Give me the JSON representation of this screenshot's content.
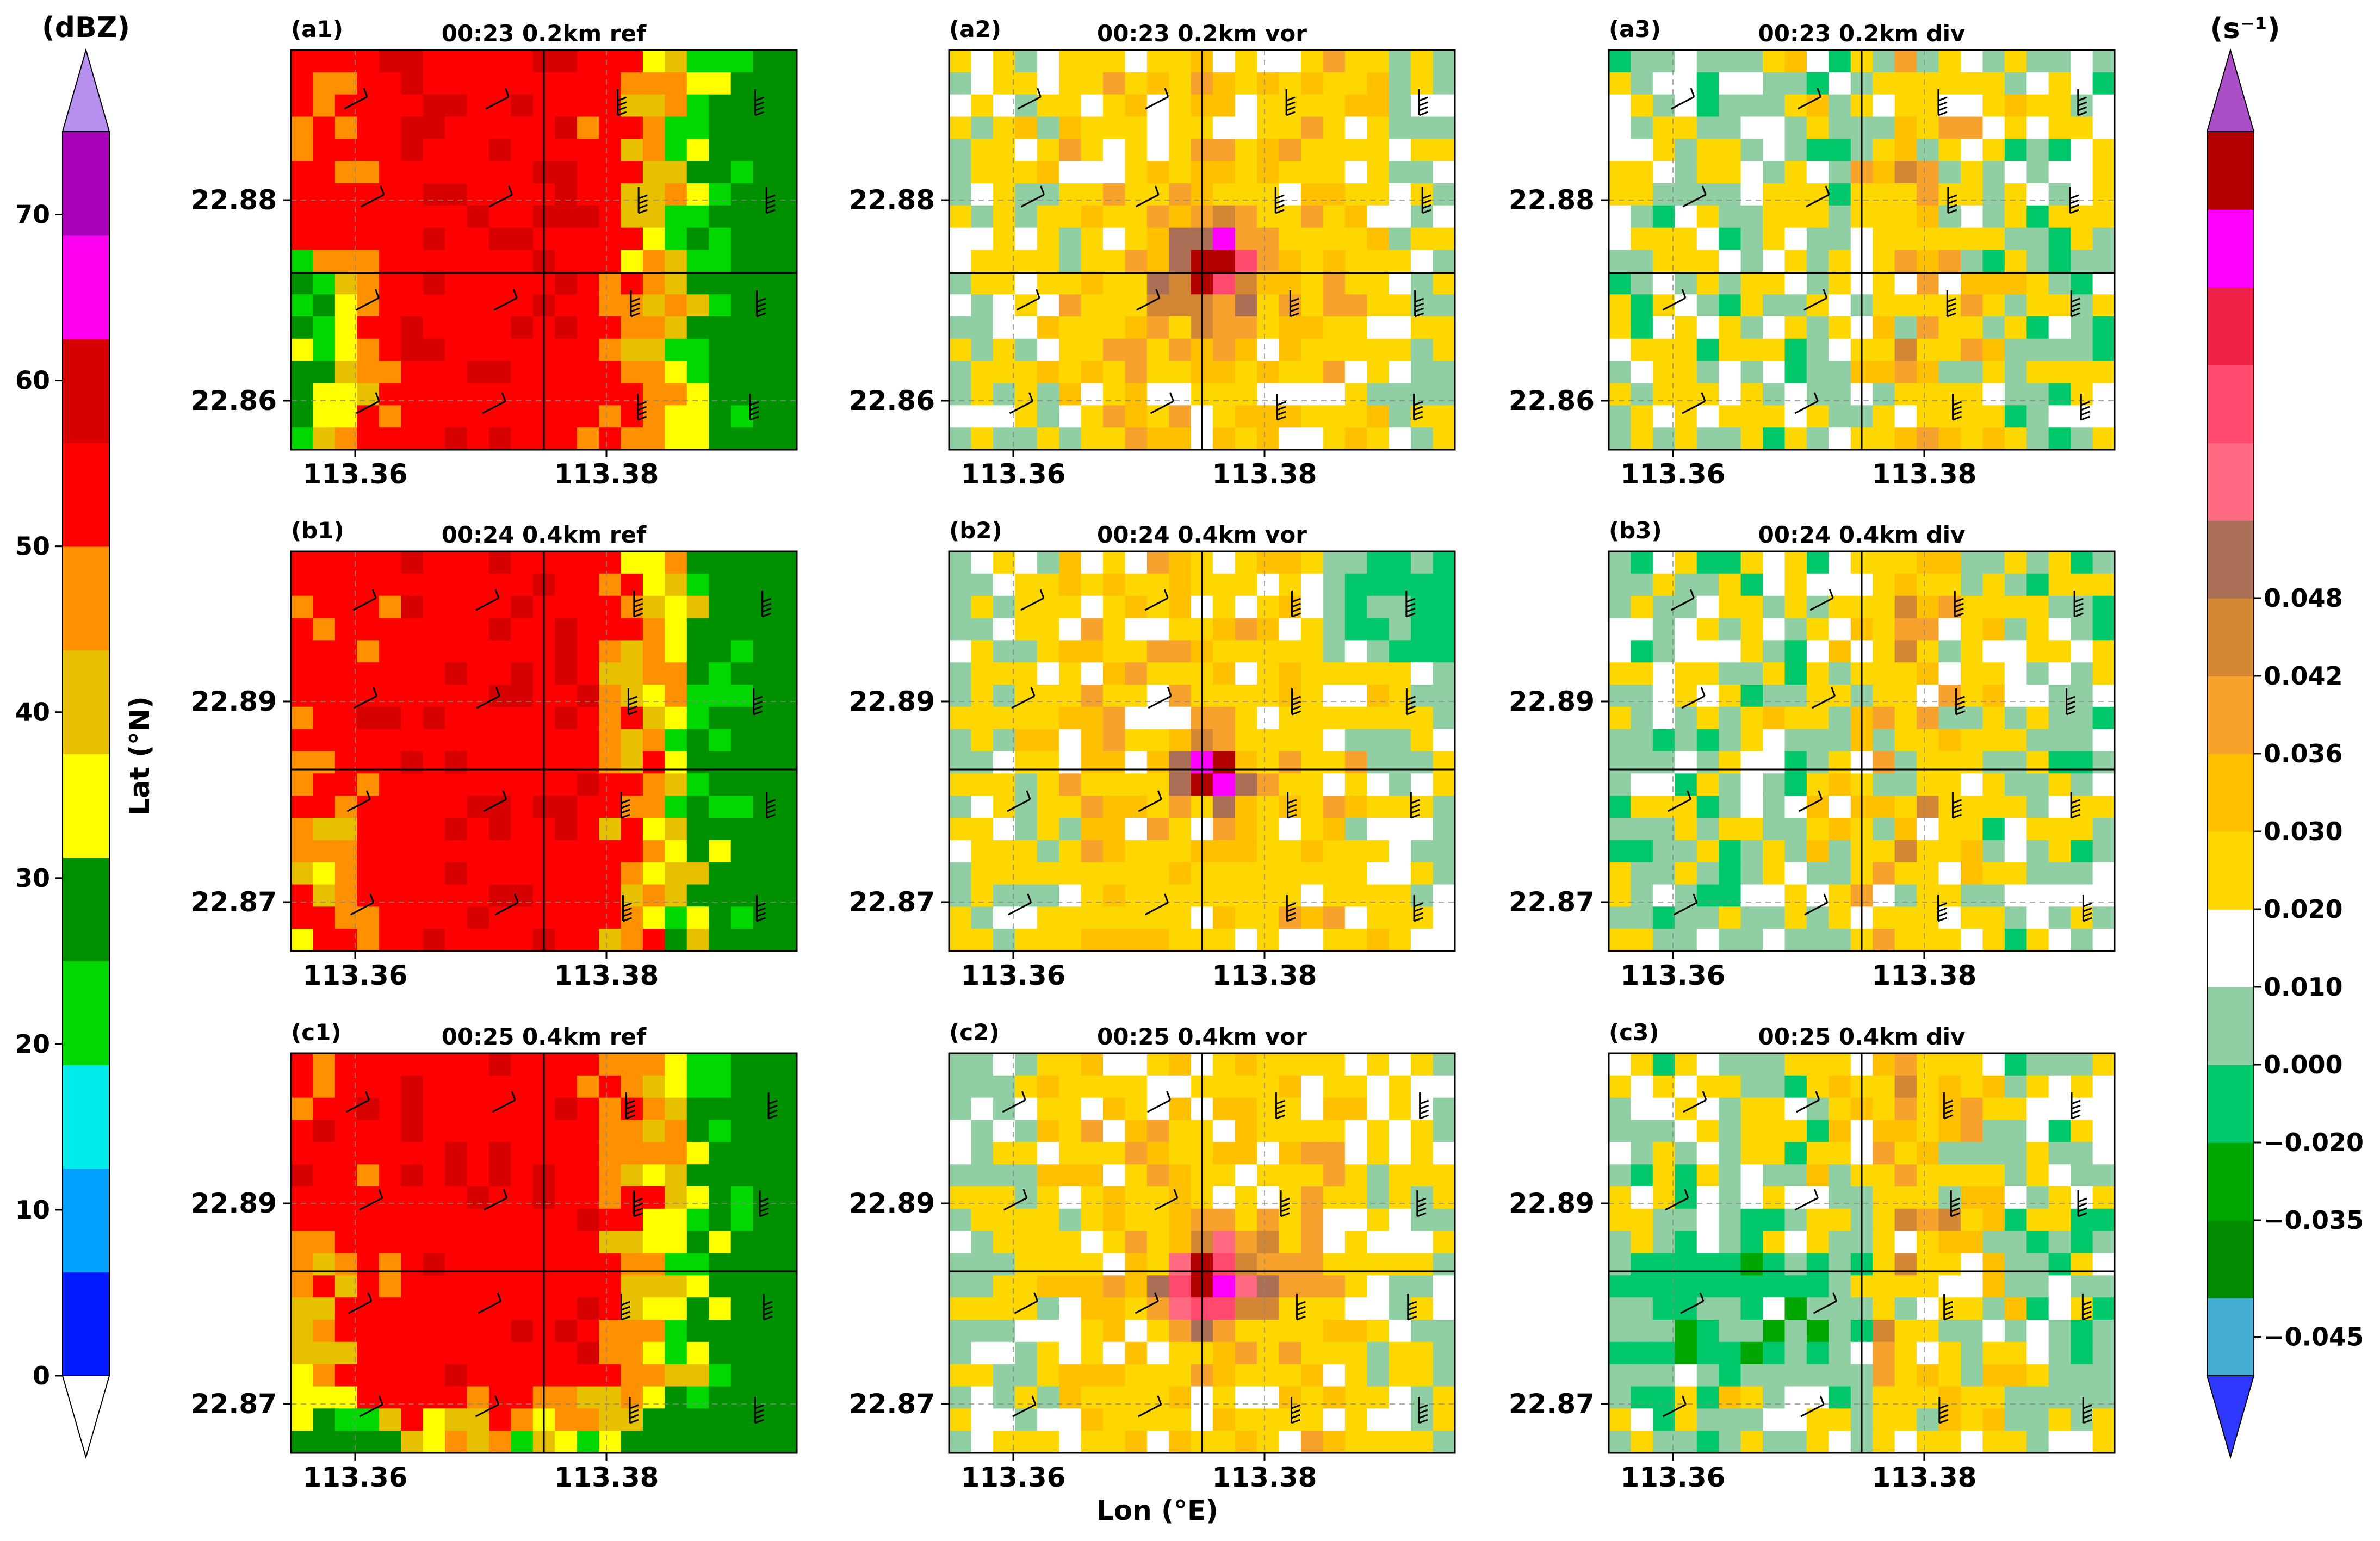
{
  "figure": {
    "xlabel": "Lon (°E)",
    "ylabel": "Lat (°N)",
    "lon_ticks": [
      "113.36",
      "113.38"
    ]
  },
  "colorbar_left": {
    "unit": "(dBZ)",
    "ticks": [
      "0",
      "10",
      "20",
      "30",
      "40",
      "50",
      "60",
      "70"
    ],
    "colors": [
      "#ffffff",
      "#0019ff",
      "#00a0ff",
      "#00ecec",
      "#00d800",
      "#009100",
      "#ffff00",
      "#e7c000",
      "#ff9000",
      "#ff0000",
      "#d60000",
      "#ff00f0",
      "#a800b8",
      "#b891f0"
    ]
  },
  "colorbar_right": {
    "unit": "(s⁻¹)",
    "ticks": [
      "−0.045",
      "−0.035",
      "−0.020",
      "0.000",
      "0.010",
      "0.020",
      "0.030",
      "0.036",
      "0.042",
      "0.048"
    ],
    "colors": [
      "#2f38ff",
      "#43acd0",
      "#008b00",
      "#00a600",
      "#00c86b",
      "#90cfa3",
      "#ffffff",
      "#ffd700",
      "#ffc000",
      "#f6a22c",
      "#d38633",
      "#ab6f55",
      "#ff6a80",
      "#ff4a6e",
      "#ed2045",
      "#ff00ff",
      "#b20000",
      "#aa4fc8"
    ]
  },
  "chart_data": [
    {
      "type": "heatmap",
      "id": "a1",
      "label": "(a1)",
      "title": "00:23 0.2km ref",
      "lat_ticks": [
        "22.88",
        "22.86"
      ],
      "ylim": [
        22.855,
        22.895
      ],
      "xlim": [
        113.355,
        113.395
      ],
      "variable": "reflectivity",
      "units": "dBZ"
    },
    {
      "type": "heatmap",
      "id": "a2",
      "label": "(a2)",
      "title": "00:23 0.2km vor",
      "lat_ticks": [
        "22.88",
        "22.86"
      ],
      "ylim": [
        22.855,
        22.895
      ],
      "xlim": [
        113.355,
        113.395
      ],
      "variable": "vorticity",
      "units": "s-1"
    },
    {
      "type": "heatmap",
      "id": "a3",
      "label": "(a3)",
      "title": "00:23 0.2km div",
      "lat_ticks": [
        "22.88",
        "22.86"
      ],
      "ylim": [
        22.855,
        22.895
      ],
      "xlim": [
        113.355,
        113.395
      ],
      "variable": "divergence",
      "units": "s-1"
    },
    {
      "type": "heatmap",
      "id": "b1",
      "label": "(b1)",
      "title": "00:24 0.4km ref",
      "lat_ticks": [
        "22.89",
        "22.87"
      ],
      "ylim": [
        22.865,
        22.905
      ],
      "xlim": [
        113.355,
        113.395
      ],
      "variable": "reflectivity",
      "units": "dBZ"
    },
    {
      "type": "heatmap",
      "id": "b2",
      "label": "(b2)",
      "title": "00:24 0.4km vor",
      "lat_ticks": [
        "22.89",
        "22.87"
      ],
      "ylim": [
        22.865,
        22.905
      ],
      "xlim": [
        113.355,
        113.395
      ],
      "variable": "vorticity",
      "units": "s-1"
    },
    {
      "type": "heatmap",
      "id": "b3",
      "label": "(b3)",
      "title": "00:24 0.4km div",
      "lat_ticks": [
        "22.89",
        "22.87"
      ],
      "ylim": [
        22.865,
        22.905
      ],
      "xlim": [
        113.355,
        113.395
      ],
      "variable": "divergence",
      "units": "s-1"
    },
    {
      "type": "heatmap",
      "id": "c1",
      "label": "(c1)",
      "title": "00:25 0.4km ref",
      "lat_ticks": [
        "22.89",
        "22.87"
      ],
      "ylim": [
        22.865,
        22.905
      ],
      "xlim": [
        113.355,
        113.395
      ],
      "variable": "reflectivity",
      "units": "dBZ"
    },
    {
      "type": "heatmap",
      "id": "c2",
      "label": "(c2)",
      "title": "00:25 0.4km vor",
      "lat_ticks": [
        "22.89",
        "22.87"
      ],
      "ylim": [
        22.865,
        22.905
      ],
      "xlim": [
        113.355,
        113.395
      ],
      "variable": "vorticity",
      "units": "s-1"
    },
    {
      "type": "heatmap",
      "id": "c3",
      "label": "(c3)",
      "title": "00:25 0.4km div",
      "lat_ticks": [
        "22.89",
        "22.87"
      ],
      "ylim": [
        22.865,
        22.905
      ],
      "xlim": [
        113.355,
        113.395
      ],
      "variable": "divergence",
      "units": "s-1"
    }
  ]
}
